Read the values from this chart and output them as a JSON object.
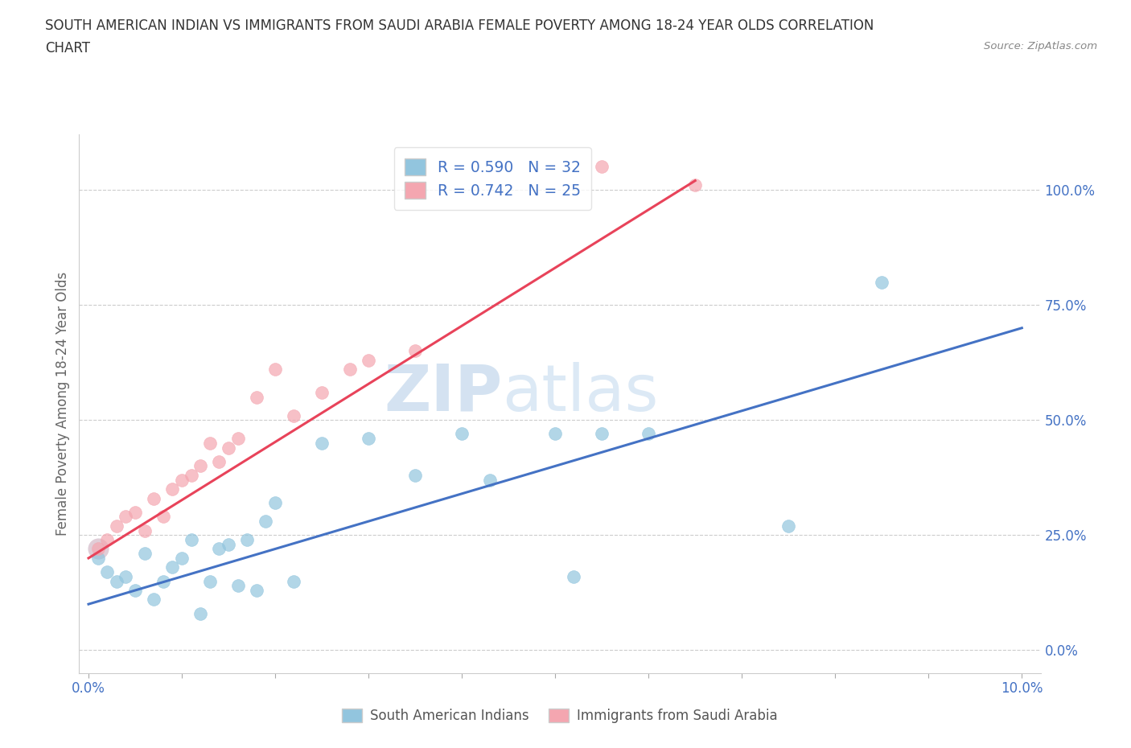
{
  "title_line1": "SOUTH AMERICAN INDIAN VS IMMIGRANTS FROM SAUDI ARABIA FEMALE POVERTY AMONG 18-24 YEAR OLDS CORRELATION",
  "title_line2": "CHART",
  "source": "Source: ZipAtlas.com",
  "ylabel": "Female Poverty Among 18-24 Year Olds",
  "xlim": [
    -0.001,
    0.102
  ],
  "ylim": [
    -0.05,
    1.12
  ],
  "ytick_labels": [
    "0.0%",
    "25.0%",
    "50.0%",
    "75.0%",
    "100.0%"
  ],
  "ytick_values": [
    0.0,
    0.25,
    0.5,
    0.75,
    1.0
  ],
  "xtick_labels": [
    "0.0%",
    "",
    "",
    "",
    "",
    "",
    "",
    "",
    "",
    "",
    "10.0%"
  ],
  "xtick_values": [
    0.0,
    0.01,
    0.02,
    0.03,
    0.04,
    0.05,
    0.06,
    0.07,
    0.08,
    0.09,
    0.1
  ],
  "legend_R1": "R = 0.590",
  "legend_N1": "N = 32",
  "legend_R2": "R = 0.742",
  "legend_N2": "N = 25",
  "color_blue": "#92C5DE",
  "color_pink": "#F4A6B0",
  "color_blue_line": "#4472C4",
  "color_pink_line": "#E8435A",
  "color_text_blue": "#4472C4",
  "watermark_zip": "ZIP",
  "watermark_atlas": "atlas",
  "background_color": "#FFFFFF",
  "grid_color": "#CCCCCC",
  "blue_scatter_x": [
    0.001,
    0.002,
    0.003,
    0.004,
    0.005,
    0.006,
    0.007,
    0.008,
    0.009,
    0.01,
    0.011,
    0.012,
    0.013,
    0.014,
    0.015,
    0.016,
    0.017,
    0.018,
    0.019,
    0.02,
    0.022,
    0.025,
    0.03,
    0.035,
    0.04,
    0.043,
    0.05,
    0.052,
    0.055,
    0.06,
    0.075,
    0.085
  ],
  "blue_scatter_y": [
    0.2,
    0.17,
    0.15,
    0.16,
    0.13,
    0.21,
    0.11,
    0.15,
    0.18,
    0.2,
    0.24,
    0.08,
    0.15,
    0.22,
    0.23,
    0.14,
    0.24,
    0.13,
    0.28,
    0.32,
    0.15,
    0.45,
    0.46,
    0.38,
    0.47,
    0.37,
    0.47,
    0.16,
    0.47,
    0.47,
    0.27,
    0.8
  ],
  "pink_scatter_x": [
    0.001,
    0.002,
    0.003,
    0.004,
    0.005,
    0.006,
    0.007,
    0.008,
    0.009,
    0.01,
    0.011,
    0.012,
    0.013,
    0.014,
    0.015,
    0.016,
    0.018,
    0.02,
    0.022,
    0.025,
    0.028,
    0.03,
    0.035,
    0.055,
    0.065
  ],
  "pink_scatter_y": [
    0.22,
    0.24,
    0.27,
    0.29,
    0.3,
    0.26,
    0.33,
    0.29,
    0.35,
    0.37,
    0.38,
    0.4,
    0.45,
    0.41,
    0.44,
    0.46,
    0.55,
    0.61,
    0.51,
    0.56,
    0.61,
    0.63,
    0.65,
    1.05,
    1.01
  ],
  "blue_line_x": [
    0.0,
    0.1
  ],
  "blue_line_y": [
    0.1,
    0.7
  ],
  "pink_line_x": [
    0.0,
    0.065
  ],
  "pink_line_y": [
    0.2,
    1.02
  ]
}
